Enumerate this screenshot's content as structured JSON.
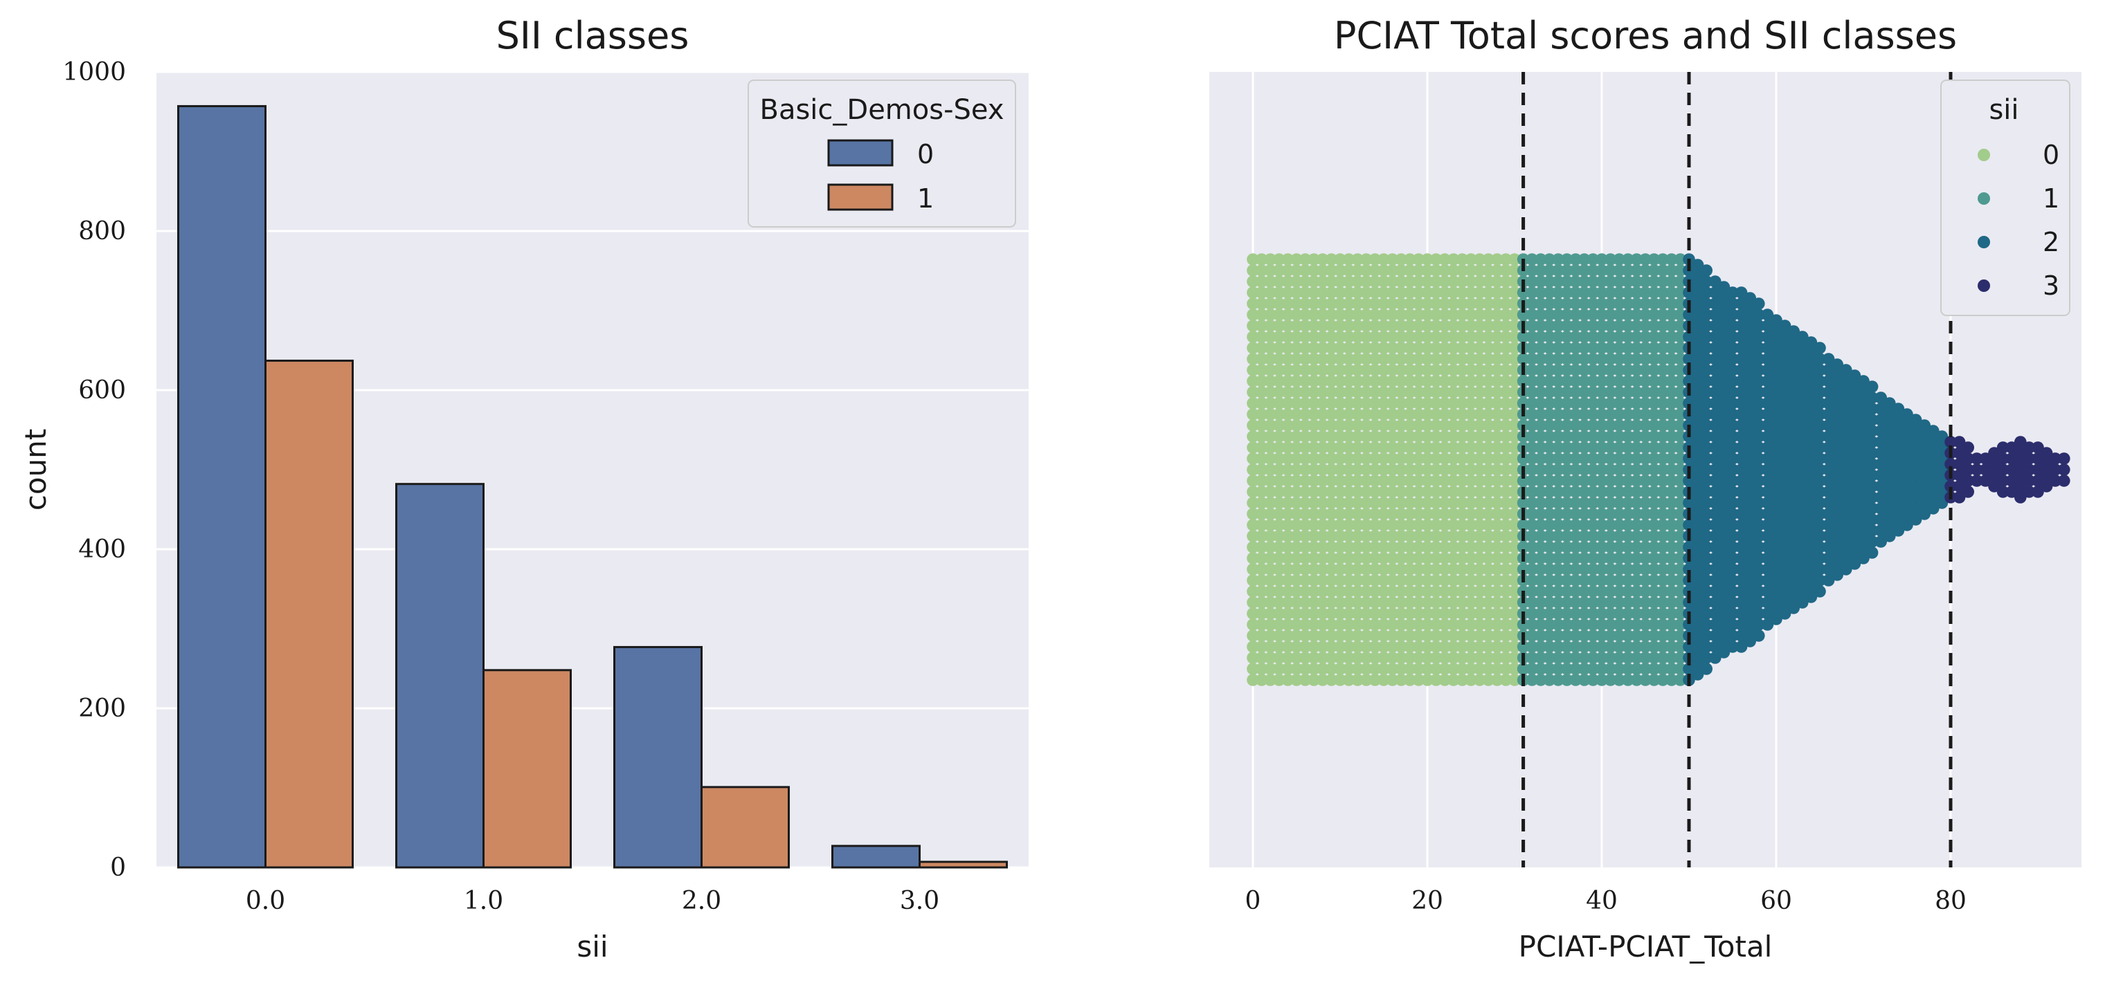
{
  "colors": {
    "panel_bg": "#eaeaf2",
    "grid": "#ffffff",
    "sex_0": "#5874a4",
    "sex_1": "#cd8862",
    "sii_0": "#a2cc8b",
    "sii_1": "#4f9a90",
    "sii_2": "#1f6886",
    "sii_3": "#2c2d6c",
    "threshold_line": "#1a1a1a"
  },
  "chart_data": [
    {
      "type": "bar",
      "title": "SII classes",
      "xlabel": "sii",
      "ylabel": "count",
      "categories": [
        "0.0",
        "1.0",
        "2.0",
        "3.0"
      ],
      "series": [
        {
          "name": "0",
          "values": [
            957,
            482,
            277,
            27
          ]
        },
        {
          "name": "1",
          "values": [
            637,
            248,
            101,
            7
          ]
        }
      ],
      "ylim": [
        0,
        1000
      ],
      "yticks": [
        0,
        200,
        400,
        600,
        800,
        1000
      ],
      "legend": {
        "title": "Basic_Demos-Sex",
        "placement": "top-right"
      },
      "grid": true
    },
    {
      "type": "scatter",
      "subtype": "swarm",
      "title": "PCIAT Total scores and SII classes",
      "xlabel": "PCIAT-PCIAT_Total",
      "ylabel": "",
      "xlim": [
        -5,
        95
      ],
      "xticks": [
        0,
        20,
        40,
        60,
        80
      ],
      "thresholds": [
        31,
        50,
        80
      ],
      "class_ranges": [
        {
          "sii": "0",
          "min": 0,
          "max": 30
        },
        {
          "sii": "1",
          "min": 31,
          "max": 49
        },
        {
          "sii": "2",
          "min": 50,
          "max": 79
        },
        {
          "sii": "3",
          "min": 80,
          "max": 93
        }
      ],
      "legend": {
        "title": "sii",
        "placement": "top-right",
        "entries": [
          "0",
          "1",
          "2",
          "3"
        ]
      },
      "grid": true
    }
  ]
}
